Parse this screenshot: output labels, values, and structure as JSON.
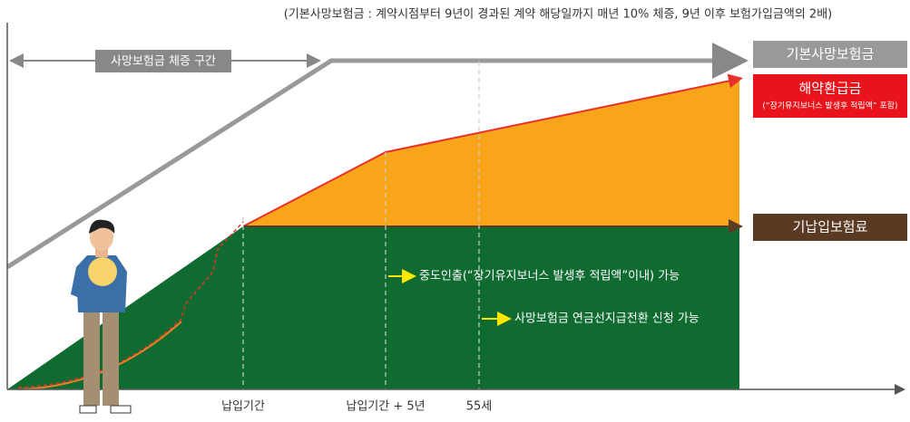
{
  "note": "(기본사망보험금 : 계약시점부터 9년이 경과된 계약 해당일까지 매년 10% 체증, 9년 이후 보험가입금액의 2배)",
  "range_label": "사망보험금 체증 구간",
  "legend": {
    "base_death": "기본사망보험금",
    "surrender": {
      "title": "해약환급금",
      "sub": "(“장기유지보너스 발생후 적립액” 포함)"
    },
    "paid": "기납입보험료"
  },
  "annotations": [
    "중도인출(“장기유지보너스 발생후 적립액”이내) 가능",
    "사망보험금 연금선지급전환 신청 가능"
  ],
  "x_labels": [
    "납입기간",
    "납입기간 + 5년",
    "55세"
  ]
}
